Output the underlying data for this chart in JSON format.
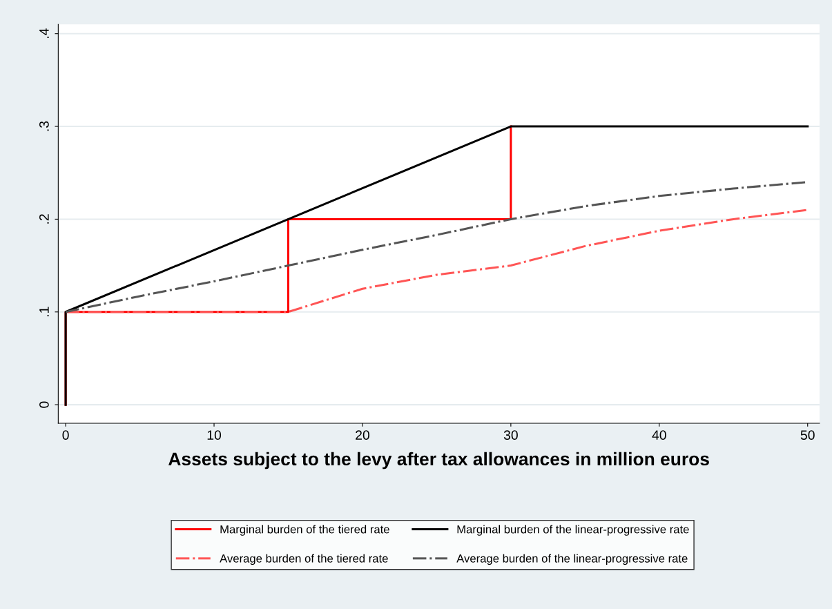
{
  "chart_data": {
    "type": "line",
    "xlabel": "Assets subject to the levy after tax allowances in million euros",
    "xlim": [
      -0.5,
      50.8
    ],
    "xticks": [
      0,
      10,
      20,
      30,
      40,
      50
    ],
    "ylim": [
      -0.02,
      0.41
    ],
    "yticks": [
      {
        "value": 0,
        "label": "0"
      },
      {
        "value": 0.1,
        "label": ".1"
      },
      {
        "value": 0.2,
        "label": ".2"
      },
      {
        "value": 0.3,
        "label": ".3"
      },
      {
        "value": 0.4,
        "label": ".4"
      }
    ],
    "grid": "y",
    "legend": "bottom",
    "marker": "none",
    "series": [
      {
        "name": "Marginal burden of the tiered rate",
        "color": "#ff0000",
        "line_style": "solid",
        "x": [
          0,
          0,
          15,
          15,
          30,
          30
        ],
        "values": [
          0,
          0.1,
          0.1,
          0.2,
          0.2,
          0.3
        ]
      },
      {
        "name": "Average burden of the tiered rate",
        "color": "#ff5555",
        "line_style": "dashdot",
        "x": [
          0,
          5,
          10,
          15,
          20,
          25,
          30,
          35,
          40,
          45,
          50
        ],
        "values": [
          0.1,
          0.1,
          0.1,
          0.1,
          0.125,
          0.14,
          0.15,
          0.171,
          0.1875,
          0.2,
          0.21
        ]
      },
      {
        "name": "Marginal burden of the linear-progressive rate",
        "color": "#000000",
        "line_style": "solid",
        "x": [
          0,
          0,
          30,
          50
        ],
        "values": [
          0,
          0.1,
          0.3,
          0.3
        ]
      },
      {
        "name": "Average burden of the linear-progressive rate",
        "color": "#555555",
        "line_style": "dashdot",
        "x": [
          0,
          5,
          10,
          15,
          20,
          25,
          30,
          35,
          40,
          45,
          50
        ],
        "values": [
          0.1,
          0.117,
          0.133,
          0.15,
          0.167,
          0.183,
          0.2,
          0.214,
          0.225,
          0.233,
          0.24
        ]
      }
    ]
  }
}
